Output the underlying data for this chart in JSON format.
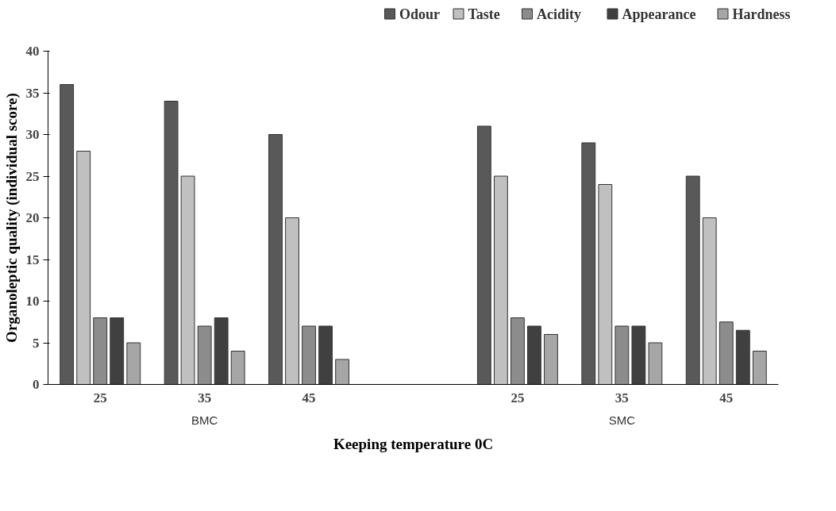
{
  "chart_data": {
    "type": "bar",
    "xlabel": "Keeping temperature 0C",
    "ylabel": "Organoleptic quality (individual score)",
    "categories": [
      "25",
      "35",
      "45",
      null,
      "25",
      "35",
      "45"
    ],
    "series": [
      {
        "name": "Odour",
        "color": "#595959",
        "values": [
          36,
          34,
          30,
          null,
          31,
          29,
          25
        ]
      },
      {
        "name": "Taste",
        "color": "#c0c0c0",
        "values": [
          28,
          25,
          20,
          null,
          25,
          24,
          20
        ]
      },
      {
        "name": "Acidity",
        "color": "#8c8c8c",
        "values": [
          8,
          7,
          7,
          null,
          8,
          7,
          7.5
        ]
      },
      {
        "name": "Appearance",
        "color": "#404040",
        "values": [
          8,
          8,
          7,
          null,
          7,
          7,
          6.5
        ]
      },
      {
        "name": "Hardness",
        "color": "#a6a6a6",
        "values": [
          5,
          4,
          3,
          null,
          6,
          5,
          4
        ]
      }
    ],
    "annotations": [
      "BMC",
      "SMC"
    ],
    "ylim": [
      0,
      40
    ],
    "yticks": [
      0,
      5,
      10,
      15,
      20,
      25,
      30,
      35,
      40
    ],
    "grid": false,
    "legend": "top"
  }
}
